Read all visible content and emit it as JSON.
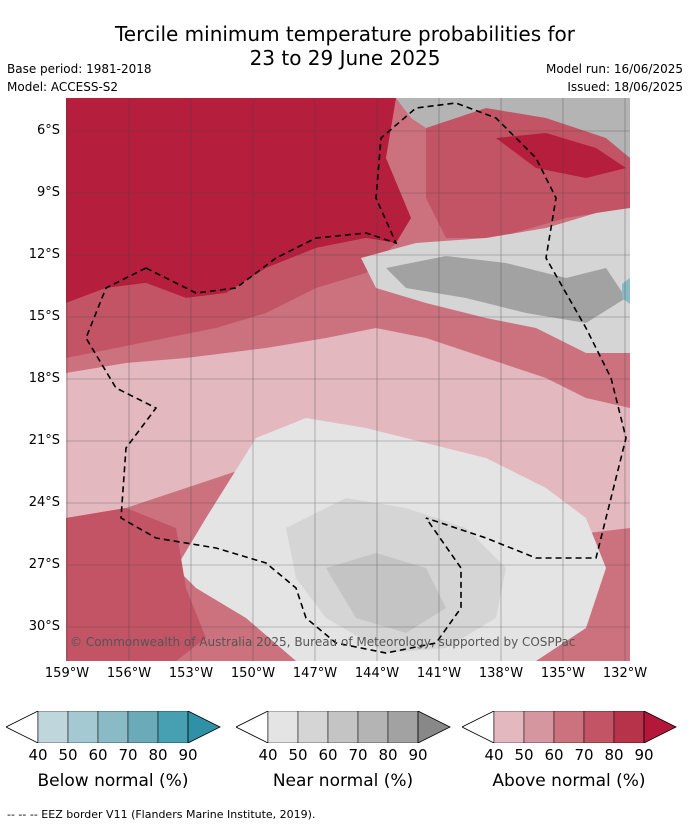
{
  "title_line1": "Tercile minimum temperature probabilities for",
  "title_line2": "23 to 29 June 2025",
  "meta": {
    "base_period": "Base period: 1981-2018",
    "model": "Model: ACCESS-S2",
    "model_run": "Model run: 16/06/2025",
    "issued": "Issued: 18/06/2025"
  },
  "y_ticks": [
    "6°S",
    "9°S",
    "12°S",
    "15°S",
    "18°S",
    "21°S",
    "24°S",
    "27°S",
    "30°S"
  ],
  "x_ticks": [
    "159°W",
    "156°W",
    "153°W",
    "150°W",
    "147°W",
    "144°W",
    "141°W",
    "138°W",
    "135°W",
    "132°W"
  ],
  "copyright": "© Commonwealth of Australia 2025, Bureau of Meteorology, supported by COSPPac",
  "legend": {
    "below": {
      "title": "Below normal (%)",
      "ticks": [
        "40",
        "50",
        "60",
        "70",
        "80",
        "90"
      ],
      "colors": [
        "#bfd6dc",
        "#a5c9d2",
        "#89bac6",
        "#6aaab9",
        "#46a0b2"
      ]
    },
    "near": {
      "title": "Near normal (%)",
      "ticks": [
        "40",
        "50",
        "60",
        "70",
        "80",
        "90"
      ],
      "colors": [
        "#e4e4e4",
        "#d5d5d5",
        "#c4c4c4",
        "#b4b4b4",
        "#a2a2a2"
      ]
    },
    "above": {
      "title": "Above normal (%)",
      "ticks": [
        "40",
        "50",
        "60",
        "70",
        "80",
        "90"
      ],
      "colors": [
        "#e3b8bf",
        "#d6969f",
        "#cc727f",
        "#c25465",
        "#b7334a"
      ]
    }
  },
  "footer": "--  --  -- EEZ border V11 (Flanders Marine Institute, 2019).",
  "colors": {
    "above_dark": "#b51e3c",
    "above_mid": "#c25465",
    "above_light": "#e3b8bf",
    "near": "#c4c4c4",
    "near_light": "#e4e4e4"
  }
}
